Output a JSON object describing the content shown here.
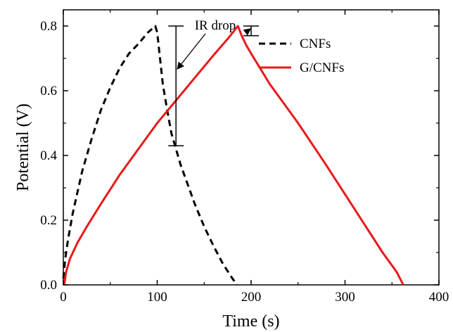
{
  "chart_data": {
    "type": "line",
    "xlabel": "Time (s)",
    "ylabel": "Potential (V)",
    "xlim": [
      0,
      400
    ],
    "ylim": [
      0,
      0.85
    ],
    "xticks": [
      0,
      100,
      200,
      300,
      400
    ],
    "yticks": [
      0.0,
      0.2,
      0.4,
      0.6,
      0.8
    ],
    "xtick_labels": [
      "0",
      "100",
      "200",
      "300",
      "400"
    ],
    "ytick_labels": [
      "0.0",
      "0.2",
      "0.4",
      "0.6",
      "0.8"
    ],
    "grid": false,
    "legend_position": "top-right",
    "series": [
      {
        "name": "CNFs",
        "color": "#000000",
        "dash": "dashed",
        "x": [
          0,
          2,
          5,
          10,
          20,
          30,
          40,
          50,
          60,
          70,
          80,
          90,
          96,
          98,
          100,
          103,
          106,
          110,
          115,
          120,
          125,
          130,
          140,
          150,
          160,
          170,
          180,
          185
        ],
        "y": [
          0.02,
          0.08,
          0.14,
          0.22,
          0.35,
          0.45,
          0.54,
          0.61,
          0.67,
          0.715,
          0.745,
          0.78,
          0.795,
          0.8,
          0.78,
          0.7,
          0.62,
          0.55,
          0.47,
          0.42,
          0.37,
          0.33,
          0.25,
          0.18,
          0.12,
          0.065,
          0.02,
          0.0
        ]
      },
      {
        "name": "G/CNFs",
        "color": "#e8191b",
        "dash": "solid",
        "x": [
          1,
          3,
          7,
          15,
          25,
          40,
          60,
          80,
          100,
          120,
          140,
          160,
          175,
          186,
          190,
          195,
          200,
          220,
          250,
          280,
          300,
          320,
          340,
          355,
          362
        ],
        "y": [
          0.0,
          0.04,
          0.08,
          0.13,
          0.18,
          0.25,
          0.34,
          0.42,
          0.5,
          0.57,
          0.64,
          0.71,
          0.76,
          0.8,
          0.77,
          0.74,
          0.715,
          0.62,
          0.5,
          0.37,
          0.28,
          0.19,
          0.1,
          0.04,
          0.0
        ]
      }
    ],
    "annotations": [
      {
        "text": "IR drop"
      }
    ]
  }
}
